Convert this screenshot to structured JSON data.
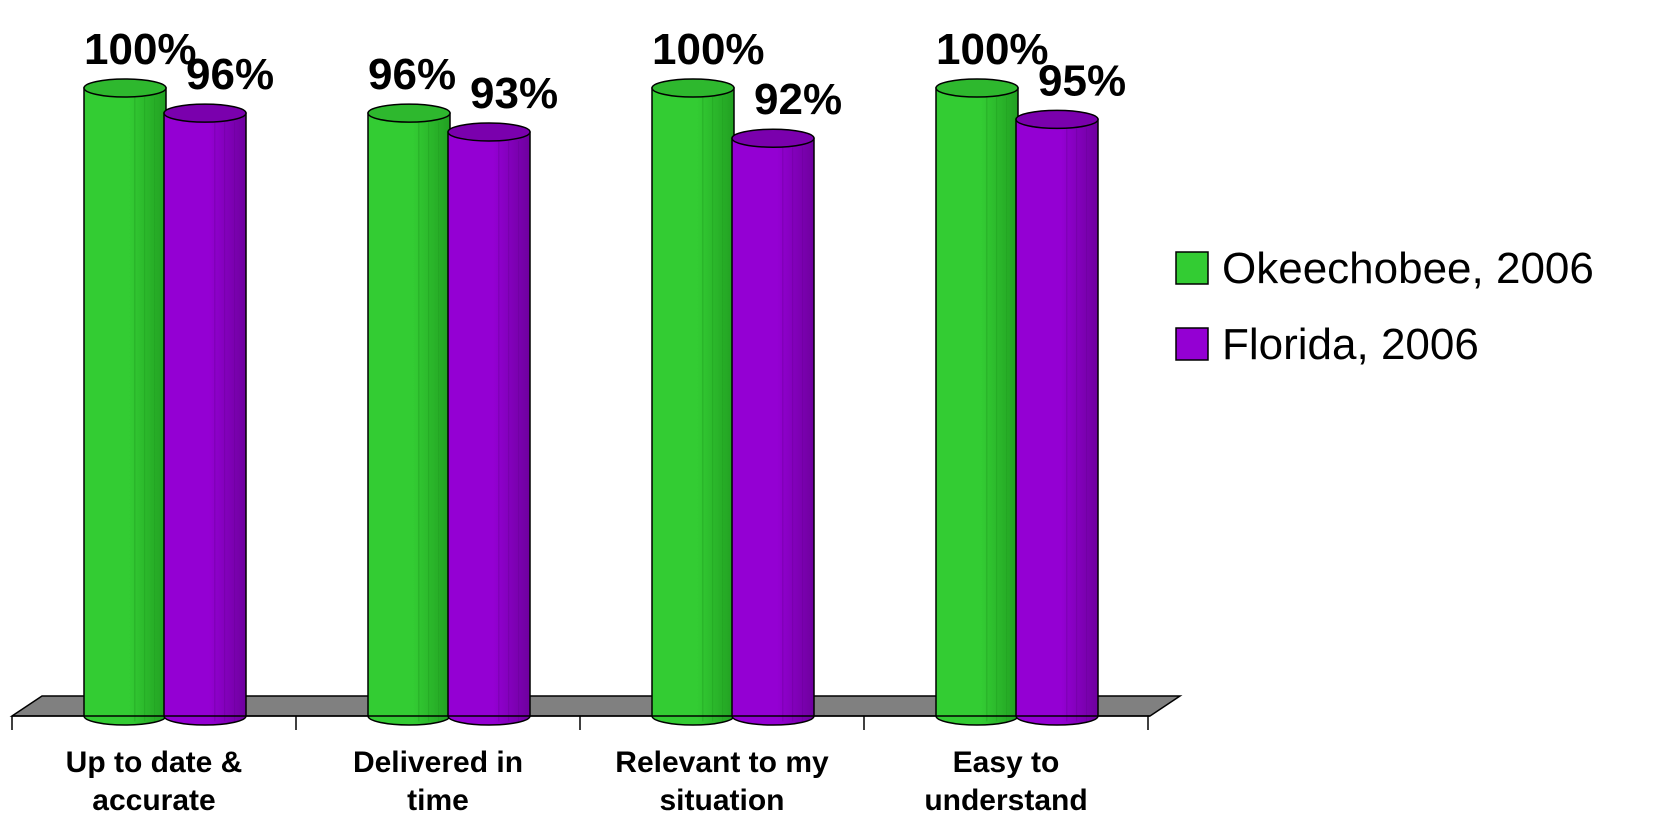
{
  "chart_data": {
    "type": "bar",
    "categories": [
      [
        "Up to date &",
        "accurate"
      ],
      [
        "Delivered in",
        "time"
      ],
      [
        "Relevant to my",
        "situation"
      ],
      [
        "Easy to",
        "understand"
      ]
    ],
    "series": [
      {
        "name": "Okeechobee, 2006",
        "values": [
          100,
          96,
          100,
          100
        ],
        "labels": [
          "100%",
          "96%",
          "100%",
          "100%"
        ]
      },
      {
        "name": "Florida, 2006",
        "values": [
          96,
          93,
          92,
          95
        ],
        "labels": [
          "96%",
          "93%",
          "92%",
          "95%"
        ]
      }
    ],
    "ylim": [
      0,
      100
    ],
    "grid": false,
    "legend": "right",
    "colors": {
      "okeechobee_body": "#33cc33",
      "okeechobee_dark": "#22a022",
      "okeechobee_top": "#2eb82e",
      "florida_body": "#9400d3",
      "florida_dark": "#6e009e",
      "florida_top": "#7a00ad",
      "floor": "#808080"
    }
  }
}
